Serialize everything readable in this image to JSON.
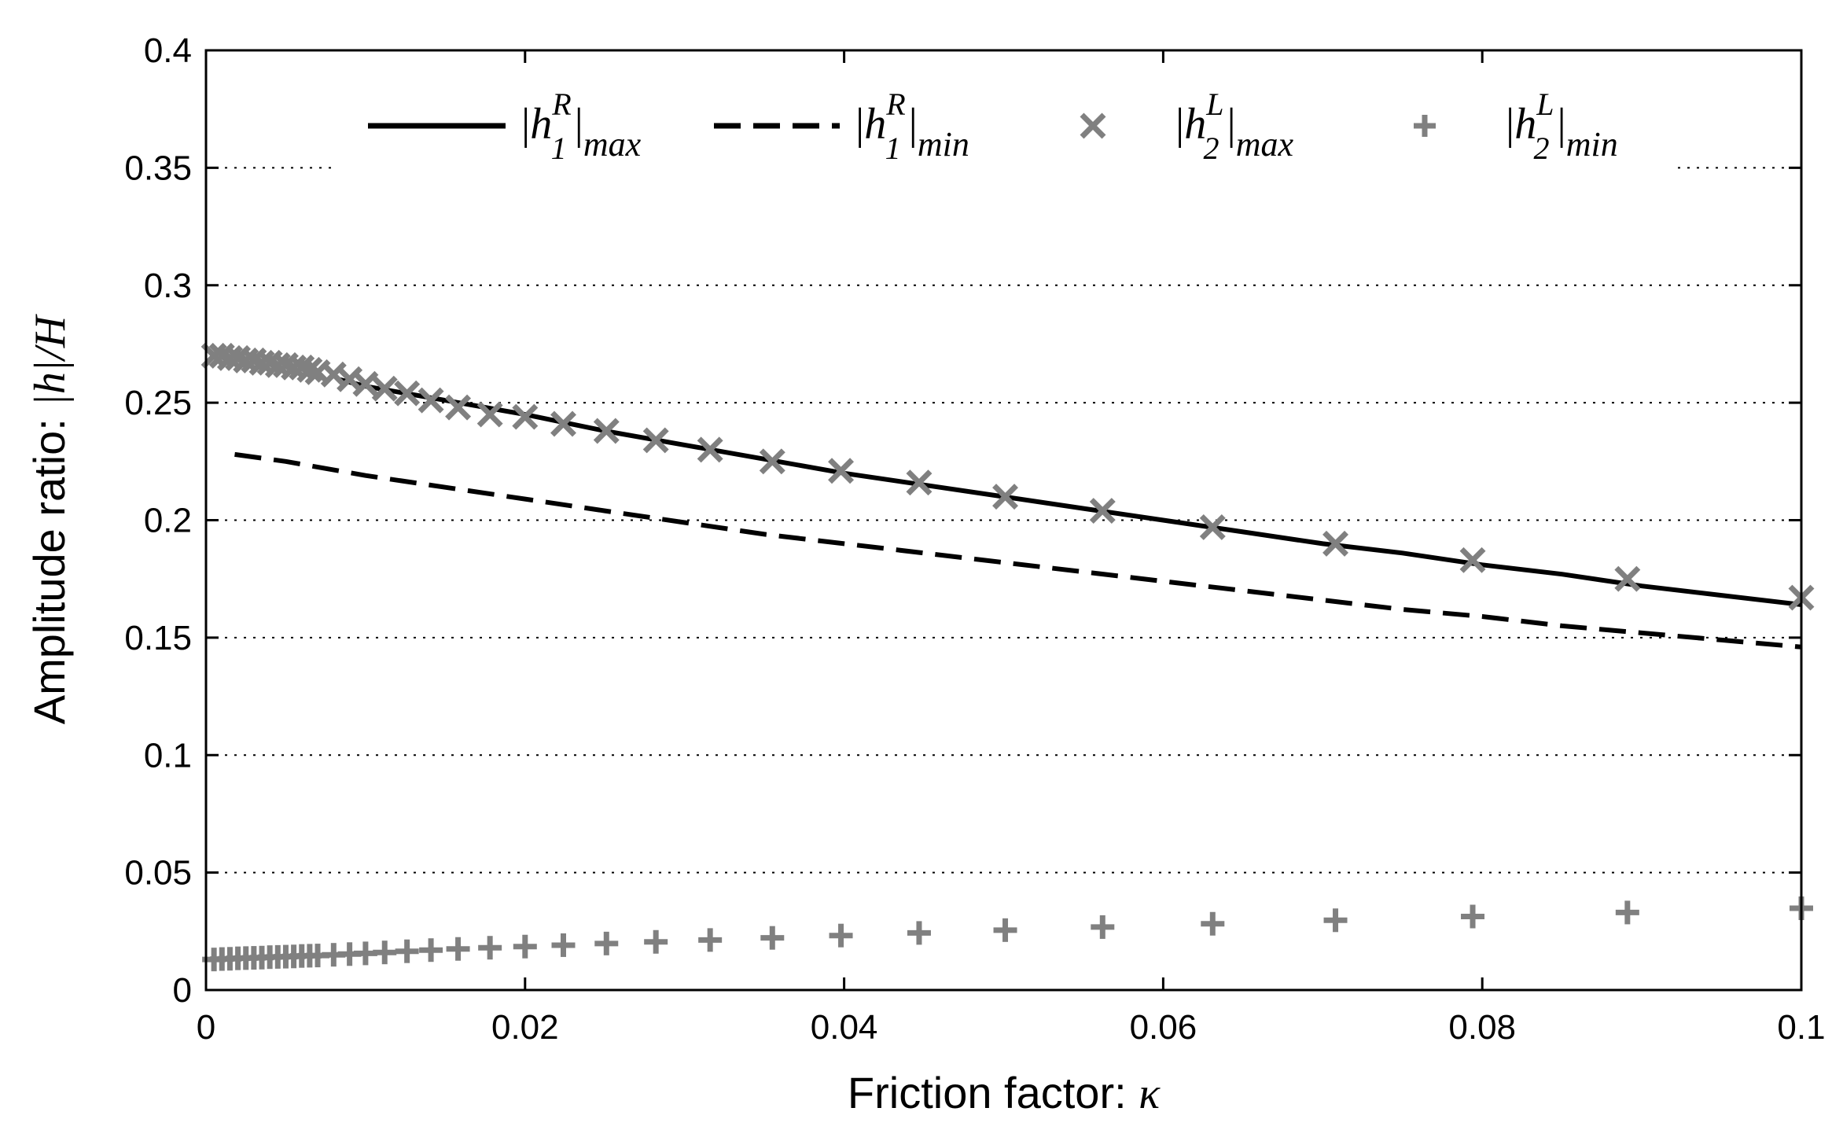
{
  "chart_data": {
    "type": "line",
    "title": "",
    "xlabel": "Friction factor: ",
    "xlabel_symbol": "κ",
    "ylabel": "Amplitude ratio: ",
    "ylabel_symbol": "|h|/H",
    "xlim": [
      0,
      0.1
    ],
    "ylim": [
      0,
      0.4
    ],
    "xticks": [
      0,
      0.02,
      0.04,
      0.06,
      0.08,
      0.1
    ],
    "xtick_labels": [
      "0",
      "0.02",
      "0.04",
      "0.06",
      "0.08",
      "0.1"
    ],
    "yticks": [
      0,
      0.05,
      0.1,
      0.15,
      0.2,
      0.25,
      0.3,
      0.35,
      0.4
    ],
    "ytick_labels": [
      "0",
      "0.05",
      "0.1",
      "0.15",
      "0.2",
      "0.25",
      "0.3",
      "0.35",
      "0.4"
    ],
    "grid": "horizontal-dotted",
    "legend_position": "top",
    "colors": {
      "solid": "#000000",
      "dashed": "#000000",
      "markers": "#808080"
    },
    "series": [
      {
        "name": "|h1R|max",
        "legend": {
          "base": "h",
          "sub": "1",
          "sup": "R",
          "tail": "max"
        },
        "style": "solid",
        "x": [
          0.0083,
          0.01,
          0.015,
          0.02,
          0.025,
          0.03,
          0.035,
          0.04,
          0.045,
          0.05,
          0.055,
          0.06,
          0.065,
          0.07,
          0.075,
          0.08,
          0.085,
          0.09,
          0.095,
          0.1
        ],
        "y": [
          0.26,
          0.257,
          0.251,
          0.245,
          0.238,
          0.232,
          0.226,
          0.22,
          0.215,
          0.21,
          0.205,
          0.2,
          0.195,
          0.19,
          0.186,
          0.181,
          0.177,
          0.172,
          0.168,
          0.164
        ]
      },
      {
        "name": "|h1R|min",
        "legend": {
          "base": "h",
          "sub": "1",
          "sup": "R",
          "tail": "min"
        },
        "style": "dashed",
        "x": [
          0.0018,
          0.005,
          0.01,
          0.015,
          0.02,
          0.025,
          0.03,
          0.035,
          0.04,
          0.045,
          0.05,
          0.055,
          0.06,
          0.065,
          0.07,
          0.075,
          0.08,
          0.085,
          0.09,
          0.095,
          0.1
        ],
        "y": [
          0.228,
          0.225,
          0.219,
          0.214,
          0.209,
          0.204,
          0.199,
          0.194,
          0.19,
          0.186,
          0.182,
          0.178,
          0.174,
          0.17,
          0.166,
          0.162,
          0.159,
          0.155,
          0.152,
          0.149,
          0.146
        ]
      },
      {
        "name": "|h2L|max",
        "legend": {
          "base": "h",
          "sub": "2",
          "sup": "L",
          "tail": "max"
        },
        "style": "x-marker",
        "x": [
          0.0005,
          0.001,
          0.0015,
          0.002,
          0.0025,
          0.003,
          0.0035,
          0.004,
          0.0045,
          0.005,
          0.0055,
          0.006,
          0.0065,
          0.007,
          0.008,
          0.009,
          0.01,
          0.0112,
          0.0126,
          0.0141,
          0.0158,
          0.0178,
          0.02,
          0.0224,
          0.0251,
          0.0282,
          0.0316,
          0.0355,
          0.0398,
          0.0447,
          0.0501,
          0.0562,
          0.0631,
          0.0708,
          0.0794,
          0.0891,
          0.1
        ],
        "y": [
          0.27,
          0.27,
          0.269,
          0.269,
          0.268,
          0.268,
          0.267,
          0.267,
          0.266,
          0.266,
          0.265,
          0.265,
          0.264,
          0.263,
          0.262,
          0.26,
          0.258,
          0.256,
          0.254,
          0.251,
          0.248,
          0.245,
          0.244,
          0.241,
          0.238,
          0.234,
          0.23,
          0.225,
          0.221,
          0.216,
          0.21,
          0.204,
          0.197,
          0.19,
          0.183,
          0.175,
          0.167
        ]
      },
      {
        "name": "|h2L|min",
        "legend": {
          "base": "h",
          "sub": "2",
          "sup": "L",
          "tail": "min"
        },
        "style": "plus-marker",
        "x": [
          0.0005,
          0.001,
          0.0015,
          0.002,
          0.0025,
          0.003,
          0.0035,
          0.004,
          0.0045,
          0.005,
          0.0055,
          0.006,
          0.0065,
          0.007,
          0.008,
          0.009,
          0.01,
          0.0112,
          0.0126,
          0.0141,
          0.0158,
          0.0178,
          0.02,
          0.0224,
          0.0251,
          0.0282,
          0.0316,
          0.0355,
          0.0398,
          0.0447,
          0.0501,
          0.0562,
          0.0631,
          0.0708,
          0.0794,
          0.0891,
          0.1
        ],
        "y": [
          0.013,
          0.0132,
          0.0133,
          0.0135,
          0.0136,
          0.0137,
          0.0138,
          0.014,
          0.0141,
          0.0142,
          0.0143,
          0.0145,
          0.0146,
          0.0147,
          0.015,
          0.0153,
          0.0156,
          0.016,
          0.0165,
          0.017,
          0.0175,
          0.018,
          0.0185,
          0.0191,
          0.0198,
          0.0205,
          0.0213,
          0.0222,
          0.0232,
          0.0243,
          0.0255,
          0.0268,
          0.0282,
          0.0297,
          0.0313,
          0.033,
          0.0348
        ]
      }
    ]
  }
}
